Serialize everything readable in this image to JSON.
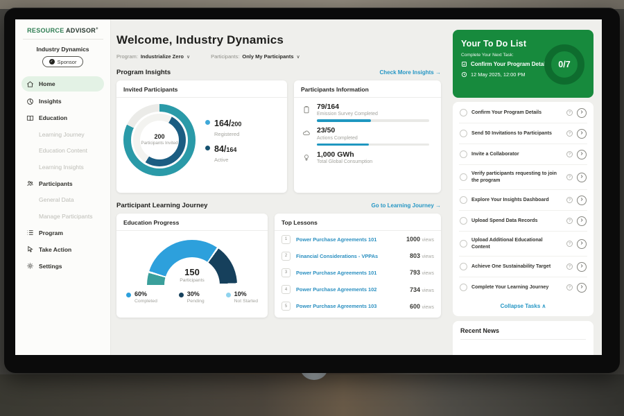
{
  "brand": {
    "primary": "RESOURCE",
    "secondary": "ADVISOR",
    "plus": "+"
  },
  "sidebar": {
    "org": "Industry Dynamics",
    "badge": "Sponsor",
    "items": [
      {
        "label": "Home",
        "icon": "home-icon",
        "style": "main",
        "active": true
      },
      {
        "label": "Insights",
        "icon": "insights-icon",
        "style": "main"
      },
      {
        "label": "Education",
        "icon": "education-icon",
        "style": "main"
      },
      {
        "label": "Learning Journey",
        "style": "sub"
      },
      {
        "label": "Education Content",
        "style": "sub"
      },
      {
        "label": "Learning Insights",
        "style": "sub"
      },
      {
        "label": "Participants",
        "icon": "participants-icon",
        "style": "main"
      },
      {
        "label": "General Data",
        "style": "sub"
      },
      {
        "label": "Manage Participants",
        "style": "sub"
      },
      {
        "label": "Program",
        "icon": "program-icon",
        "style": "main"
      },
      {
        "label": "Take Action",
        "icon": "take-action-icon",
        "style": "main"
      },
      {
        "label": "Settings",
        "icon": "settings-icon",
        "style": "main"
      }
    ]
  },
  "header": {
    "title": "Welcome, Industry Dynamics",
    "filters": [
      {
        "label": "Program:",
        "value": "Industrialize Zero",
        "icon": "chevron-down-icon"
      },
      {
        "label": "Participants:",
        "value": "Only My Participants",
        "icon": "chevron-down-icon"
      }
    ]
  },
  "program_insights": {
    "heading": "Program Insights",
    "link": "Check More Insights",
    "link_arrow": "→",
    "invited_card": {
      "title": "Invited Participants",
      "center_value": "200",
      "center_label": "Participants Invited",
      "legend": [
        {
          "big": "164/",
          "small": "200",
          "label": "Registered"
        },
        {
          "big": "84/",
          "small": "164",
          "label": "Active"
        }
      ]
    },
    "info_card": {
      "title": "Participants Information",
      "rows": [
        {
          "icon": "survey-icon",
          "value": "79/164",
          "label": "Emission Survey Completed"
        },
        {
          "icon": "actions-icon",
          "value": "23/50",
          "label": "Actions Completed"
        },
        {
          "icon": "consumption-icon",
          "value": "1,000 GWh",
          "label": "Total Global Consumption"
        }
      ]
    }
  },
  "learning_journey": {
    "heading": "Participant Learning Journey",
    "link": "Go to Learning Journey",
    "link_arrow": "→",
    "education_card": {
      "title": "Education Progress",
      "center_value": "150",
      "center_label": "Participants",
      "legend": [
        {
          "value": "60%",
          "label": "Completed",
          "color": "#2da0dc"
        },
        {
          "value": "30%",
          "label": "Pending",
          "color": "#16405c"
        },
        {
          "value": "10%",
          "label": "Not Started",
          "color": "#8fd3ee"
        }
      ]
    },
    "lessons_card": {
      "title": "Top Lessons",
      "views_suffix": "views",
      "rows": [
        {
          "rank": "1",
          "title": "Power Purchase Agreements 101",
          "views": "1000"
        },
        {
          "rank": "2",
          "title": "Financial Considerations - VPPAs",
          "views": "803"
        },
        {
          "rank": "3",
          "title": "Power Purchase Agreements 101",
          "views": "793"
        },
        {
          "rank": "4",
          "title": "Power Purchase Agreements 102",
          "views": "734"
        },
        {
          "rank": "5",
          "title": "Power Purchase Agreements 103",
          "views": "600"
        }
      ]
    }
  },
  "todo": {
    "title": "Your To Do List",
    "subtitle": "Complete Your Next Task:",
    "next_task": "Confirm Your Program Details",
    "next_time": "12 May 2025, 12:00 PM",
    "progress": "0/7",
    "items": [
      "Confirm Your Program Details",
      "Send 50 Invitations to Participants",
      "Invite a Collaborator",
      "Verify participants requesting to join the program",
      "Explore Your Insights Dashboard",
      "Upload Spend Data Records",
      "Upload Additional Educational Content",
      "Achieve One Sustainability Target",
      "Complete Your Learning Journey"
    ],
    "collapse": "Collapse Tasks",
    "collapse_caret": "∧"
  },
  "news": {
    "title": "Recent News"
  },
  "chart_data": [
    {
      "type": "pie",
      "subtype": "double-ring-donut",
      "title": "Invited Participants",
      "rings": [
        {
          "name": "Registered",
          "value": 164,
          "total": 200,
          "color": "#2a9aa8"
        },
        {
          "name": "Active",
          "value": 84,
          "total": 164,
          "color": "#1b5d82"
        }
      ],
      "center": {
        "value": 200,
        "label": "Participants Invited"
      },
      "legend_position": "right"
    },
    {
      "type": "bar",
      "subtype": "horizontal-progress",
      "title": "Participants Information",
      "series": [
        {
          "name": "Emission Survey Completed",
          "value": 79,
          "total": 164
        },
        {
          "name": "Actions Completed",
          "value": 23,
          "total": 50
        }
      ],
      "extra_metric": {
        "label": "Total Global Consumption",
        "value": "1,000 GWh"
      }
    },
    {
      "type": "pie",
      "subtype": "half-gauge",
      "title": "Education Progress",
      "slices": [
        {
          "name": "Not Started",
          "pct": 10,
          "color": "#3a9f9b"
        },
        {
          "name": "Completed",
          "pct": 60,
          "color": "#2da0dc"
        },
        {
          "name": "Pending",
          "pct": 30,
          "color": "#16405c"
        }
      ],
      "center": {
        "value": 150,
        "label": "Participants"
      },
      "legend_position": "bottom"
    },
    {
      "type": "table",
      "title": "Top Lessons",
      "columns": [
        "rank",
        "lesson",
        "views"
      ],
      "rows": [
        [
          "1",
          "Power Purchase Agreements 101",
          1000
        ],
        [
          "2",
          "Financial Considerations - VPPAs",
          803
        ],
        [
          "3",
          "Power Purchase Agreements 101",
          793
        ],
        [
          "4",
          "Power Purchase Agreements 102",
          734
        ],
        [
          "5",
          "Power Purchase Agreements 103",
          600
        ]
      ]
    }
  ],
  "colors": {
    "brand_green": "#2e7d52",
    "card_green": "#178a3d",
    "ring_dark_green": "#0e6c2e",
    "teal": "#2a9aa8",
    "dark_blue": "#1b5d82",
    "bright_blue": "#2da0dc",
    "navy": "#16405c",
    "gauge_teal": "#3a9f9b",
    "light_blue": "#8fd3ee",
    "legend_registered_dot": "#3fa8d8",
    "legend_active_dot": "#15516f",
    "progress_bar": "#1f97c0",
    "link": "#2596c4",
    "active_nav_bg": "#e3f2e5",
    "track_gray": "#ebebe8"
  }
}
